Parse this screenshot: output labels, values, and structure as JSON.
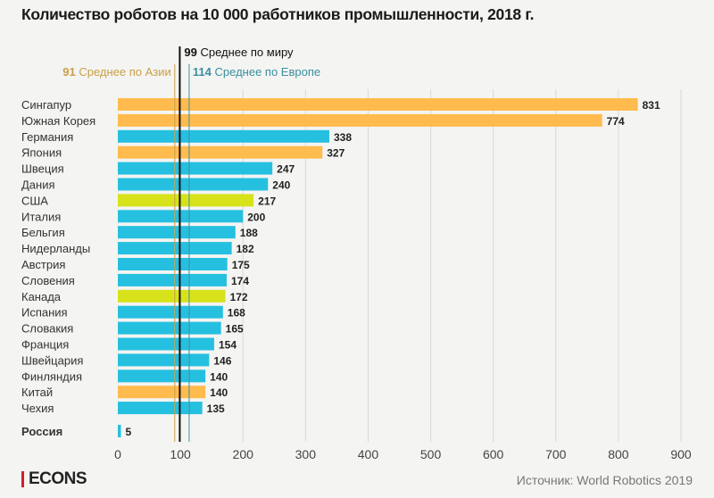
{
  "title": "Количество роботов на 10 000 работников промышленности, 2018 г.",
  "brand": "ECONS",
  "source": "Источник: World Robotics 2019",
  "colors": {
    "asia": "#ffbb4d",
    "europe": "#25c0e0",
    "america": "#d7e21a",
    "world_line": "#111111",
    "asia_line": "#c9a048",
    "europe_line": "#3a8fa0",
    "grid": "#d9d9d6"
  },
  "chart_data": {
    "type": "bar",
    "orientation": "horizontal",
    "title": "Количество роботов на 10 000 работников промышленности, 2018 г.",
    "xlabel": "",
    "ylabel": "",
    "xlim": [
      0,
      900
    ],
    "xticks": [
      0,
      100,
      200,
      300,
      400,
      500,
      600,
      700,
      800,
      900
    ],
    "grid": true,
    "categories": [
      "Сингапур",
      "Южная Корея",
      "Германия",
      "Япония",
      "Швеция",
      "Дания",
      "США",
      "Италия",
      "Бельгия",
      "Нидерланды",
      "Австрия",
      "Словения",
      "Канада",
      "Испания",
      "Словакия",
      "Франция",
      "Швейцария",
      "Финляндия",
      "Китай",
      "Чехия",
      "Россия"
    ],
    "values": [
      831,
      774,
      338,
      327,
      247,
      240,
      217,
      200,
      188,
      182,
      175,
      174,
      172,
      168,
      165,
      154,
      146,
      140,
      140,
      135,
      5
    ],
    "groups": [
      "asia",
      "asia",
      "europe",
      "asia",
      "europe",
      "europe",
      "america",
      "europe",
      "europe",
      "europe",
      "europe",
      "europe",
      "america",
      "europe",
      "europe",
      "europe",
      "europe",
      "europe",
      "asia",
      "europe",
      "europe"
    ],
    "highlight": "Россия",
    "reference_lines": [
      {
        "value": 99,
        "label_value": "99",
        "label": "Среднее по миру",
        "key": "world"
      },
      {
        "value": 91,
        "label_value": "91",
        "label": "Среднее по Азии",
        "key": "asia"
      },
      {
        "value": 114,
        "label_value": "114",
        "label": "Среднее по Европе",
        "key": "europe"
      }
    ]
  }
}
